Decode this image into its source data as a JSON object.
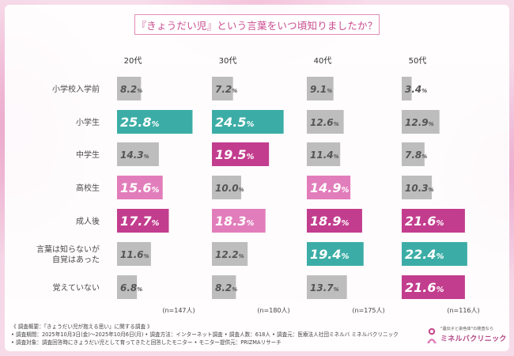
{
  "title": "『きょうだい児』という言葉をいつ頃知りましたか？",
  "colors": {
    "gray": "#bdbdbd",
    "teal": "#3cada6",
    "magenta": "#c23d8e",
    "pink": "#e27dbb",
    "grayText": "#555555",
    "lightText": "#ffffff"
  },
  "chart_data": {
    "type": "bar",
    "orientation": "horizontal",
    "title": "『きょうだい児』という言葉をいつ頃知りましたか？",
    "categories": [
      "小学校入学前",
      "小学生",
      "中学生",
      "高校生",
      "成人後",
      "言葉は知らないが\n自覚はあった",
      "覚えていない"
    ],
    "xlim": [
      0,
      27
    ],
    "series": [
      {
        "name": "20代",
        "n": "(n=147人)",
        "values": [
          8.2,
          25.8,
          14.3,
          15.6,
          17.7,
          11.6,
          6.8
        ],
        "fills": [
          "gray",
          "teal",
          "gray",
          "pink",
          "magenta",
          "gray",
          "gray"
        ]
      },
      {
        "name": "30代",
        "n": "(n=180人)",
        "values": [
          7.2,
          24.5,
          19.5,
          10.0,
          18.3,
          12.2,
          8.2
        ],
        "fills": [
          "gray",
          "teal",
          "magenta",
          "gray",
          "pink",
          "gray",
          "gray"
        ]
      },
      {
        "name": "40代",
        "n": "(n=175人)",
        "values": [
          9.1,
          12.6,
          11.4,
          14.9,
          18.9,
          19.4,
          13.7
        ],
        "fills": [
          "gray",
          "gray",
          "gray",
          "pink",
          "magenta",
          "teal",
          "gray"
        ]
      },
      {
        "name": "50代",
        "n": "(n=116人)",
        "values": [
          3.4,
          12.9,
          7.8,
          10.3,
          21.6,
          22.4,
          21.6
        ],
        "fills": [
          "gray",
          "gray",
          "gray",
          "gray",
          "magenta",
          "teal",
          "magenta"
        ]
      }
    ],
    "value_suffix": "%"
  },
  "footer": {
    "line1": "《 調査概要：「きょうだい児が抱える思い」に関する調査 》",
    "line2": "• 調査期間：2025年10月3日(金)〜2025年10月6日(月)  • 調査方法：インターネット調査  • 調査人数：618人  • 調査元：医療法人社団ミネルバ ミネルバクリニック",
    "line3": "• 調査対象：調査回答時にきょうだい児として育ってきたと回答したモニター  • モニター提供元：PRIZMAリサーチ"
  },
  "logo": {
    "tagline": "\"遺伝子と染色体\"の検査なら",
    "name": "ミネルバクリニック"
  }
}
